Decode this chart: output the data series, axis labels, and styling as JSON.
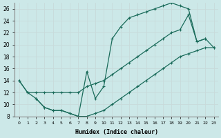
{
  "xlabel": "Humidex (Indice chaleur)",
  "background_color": "#cce8e8",
  "grid_color": "#c8dada",
  "line_color": "#1a6b5a",
  "xlim": [
    -0.5,
    23.5
  ],
  "ylim": [
    8,
    27
  ],
  "xtick_labels": [
    "0",
    "1",
    "2",
    "3",
    "4",
    "5",
    "6",
    "7",
    "8",
    "9",
    "10",
    "11",
    "12",
    "13",
    "14",
    "15",
    "16",
    "17",
    "18",
    "19",
    "20",
    "21",
    "22",
    "23"
  ],
  "ytick_labels": [
    "8",
    "10",
    "12",
    "14",
    "16",
    "18",
    "20",
    "22",
    "24",
    "26"
  ],
  "line1_x": [
    0,
    1,
    2,
    3,
    4,
    5,
    6,
    7,
    8,
    9,
    10,
    11,
    12,
    13,
    14,
    15,
    16,
    17,
    18,
    19,
    20,
    21,
    22
  ],
  "line1_y": [
    14,
    12,
    11,
    9.5,
    9,
    9,
    8.5,
    8,
    15.5,
    11,
    13,
    21,
    23,
    24.5,
    25,
    25.5,
    26,
    26.5,
    27,
    26.5,
    26,
    20.5,
    21
  ],
  "line2_x": [
    0,
    1,
    2,
    3,
    4,
    5,
    6,
    7,
    8,
    9,
    10,
    11,
    12,
    13,
    14,
    15,
    16,
    17,
    18,
    19,
    20,
    21,
    22,
    23
  ],
  "line2_y": [
    14,
    12,
    12,
    12,
    12,
    12,
    12,
    12,
    13,
    13.5,
    14,
    15,
    16,
    17,
    18,
    19,
    20,
    21,
    22,
    22.5,
    25,
    20.5,
    21,
    19.5
  ],
  "line3_x": [
    2,
    3,
    4,
    5,
    6,
    7,
    8,
    9,
    10,
    11,
    12,
    13,
    14,
    15,
    16,
    17,
    18,
    19,
    20,
    21,
    22,
    23
  ],
  "line3_y": [
    11,
    9.5,
    9,
    9,
    8.5,
    8,
    8,
    8.5,
    9,
    10,
    11,
    12,
    13,
    14,
    15,
    16,
    17,
    18,
    18.5,
    19,
    19.5,
    19.5
  ]
}
